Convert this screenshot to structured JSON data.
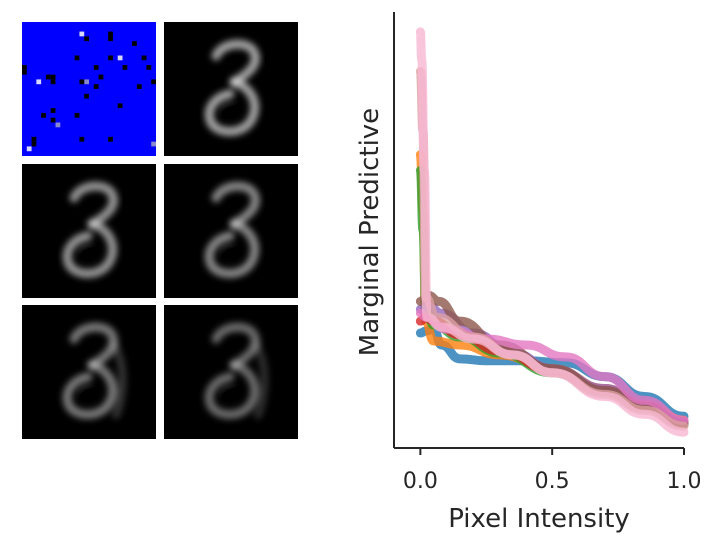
{
  "chart_data": [
    {
      "type": "image-grid",
      "rows": 3,
      "cols": 2,
      "panels": [
        {
          "kind": "masked-input",
          "description_color": "#0000ff"
        },
        {
          "kind": "reconstruction"
        },
        {
          "kind": "reconstruction"
        },
        {
          "kind": "reconstruction"
        },
        {
          "kind": "reconstruction"
        },
        {
          "kind": "reconstruction"
        }
      ]
    },
    {
      "type": "line",
      "xlabel": "Pixel Intensity",
      "ylabel": "Marginal Predictive",
      "xlim": [
        -0.1,
        1.0
      ],
      "ylim": [
        0,
        11
      ],
      "xticks": [
        0.0,
        0.5,
        1.0
      ],
      "xtick_labels": [
        "0.0",
        "0.5",
        "1.0"
      ],
      "yticks_visible": false,
      "grid": false,
      "series": [
        {
          "color": "#1f77b4",
          "points": [
            [
              0.0,
              2.9
            ],
            [
              0.02,
              2.95
            ],
            [
              0.05,
              3.0
            ],
            [
              0.08,
              2.6
            ],
            [
              0.15,
              2.25
            ],
            [
              0.25,
              2.2
            ],
            [
              0.4,
              2.2
            ],
            [
              0.55,
              2.15
            ],
            [
              0.7,
              1.8
            ],
            [
              0.85,
              1.3
            ],
            [
              1.0,
              0.8
            ]
          ]
        },
        {
          "color": "#ff7f0e",
          "points": [
            [
              0.0,
              7.4
            ],
            [
              0.01,
              6.0
            ],
            [
              0.02,
              3.2
            ],
            [
              0.05,
              2.7
            ],
            [
              0.15,
              2.6
            ],
            [
              0.3,
              2.35
            ],
            [
              0.5,
              2.0
            ],
            [
              0.7,
              1.5
            ],
            [
              0.85,
              1.1
            ],
            [
              1.0,
              0.7
            ]
          ]
        },
        {
          "color": "#2ca02c",
          "points": [
            [
              0.0,
              7.0
            ],
            [
              0.01,
              5.5
            ],
            [
              0.02,
              3.5
            ],
            [
              0.05,
              3.1
            ],
            [
              0.15,
              2.8
            ],
            [
              0.3,
              2.4
            ],
            [
              0.5,
              1.9
            ],
            [
              0.7,
              1.4
            ],
            [
              0.85,
              1.0
            ],
            [
              1.0,
              0.6
            ]
          ]
        },
        {
          "color": "#d62728",
          "points": [
            [
              0.0,
              3.2
            ],
            [
              0.02,
              3.3
            ],
            [
              0.05,
              3.2
            ],
            [
              0.15,
              2.85
            ],
            [
              0.3,
              2.45
            ],
            [
              0.5,
              1.95
            ],
            [
              0.7,
              1.45
            ],
            [
              0.85,
              1.05
            ],
            [
              1.0,
              0.65
            ]
          ]
        },
        {
          "color": "#9467bd",
          "points": [
            [
              0.0,
              3.5
            ],
            [
              0.03,
              3.6
            ],
            [
              0.08,
              3.4
            ],
            [
              0.2,
              2.9
            ],
            [
              0.35,
              2.4
            ],
            [
              0.5,
              2.0
            ],
            [
              0.7,
              1.5
            ],
            [
              0.85,
              1.1
            ],
            [
              1.0,
              0.65
            ]
          ]
        },
        {
          "color": "#8c564b",
          "points": [
            [
              0.0,
              3.7
            ],
            [
              0.03,
              3.85
            ],
            [
              0.07,
              3.7
            ],
            [
              0.15,
              3.2
            ],
            [
              0.3,
              2.6
            ],
            [
              0.5,
              2.0
            ],
            [
              0.7,
              1.45
            ],
            [
              0.85,
              1.05
            ],
            [
              1.0,
              0.6
            ]
          ]
        },
        {
          "color": "#e377c2",
          "points": [
            [
              0.0,
              3.4
            ],
            [
              0.02,
              3.3
            ],
            [
              0.1,
              3.0
            ],
            [
              0.25,
              2.75
            ],
            [
              0.4,
              2.6
            ],
            [
              0.55,
              2.3
            ],
            [
              0.7,
              1.8
            ],
            [
              0.85,
              1.2
            ],
            [
              1.0,
              0.7
            ]
          ]
        },
        {
          "color": "#dda0a0",
          "points": [
            [
              0.0,
              9.5
            ],
            [
              0.01,
              8.0
            ],
            [
              0.02,
              3.8
            ],
            [
              0.06,
              3.3
            ],
            [
              0.2,
              2.8
            ],
            [
              0.35,
              2.35
            ],
            [
              0.5,
              1.9
            ],
            [
              0.7,
              1.35
            ],
            [
              0.85,
              0.95
            ],
            [
              1.0,
              0.55
            ]
          ]
        },
        {
          "color": "#f7b6d2",
          "points": [
            [
              0.0,
              10.5
            ],
            [
              0.005,
              9.8
            ],
            [
              0.015,
              7.0
            ],
            [
              0.025,
              3.3
            ],
            [
              0.08,
              3.05
            ],
            [
              0.2,
              2.75
            ],
            [
              0.35,
              2.35
            ],
            [
              0.5,
              1.9
            ],
            [
              0.7,
              1.3
            ],
            [
              0.85,
              0.85
            ],
            [
              1.0,
              0.4
            ]
          ]
        }
      ]
    }
  ]
}
